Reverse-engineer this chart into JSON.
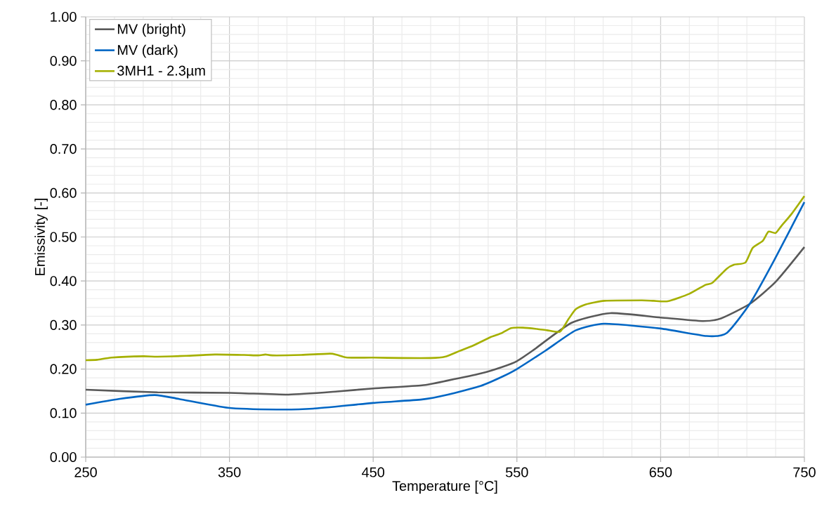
{
  "chart_data": {
    "type": "line",
    "xlabel": "Temperature [°C]",
    "ylabel": "Emissivity [-]",
    "xlim": [
      250,
      750
    ],
    "ylim": [
      0,
      1
    ],
    "xticks": [
      250,
      350,
      450,
      550,
      650,
      750
    ],
    "yticks": [
      {
        "value": 0,
        "label": "0.00"
      },
      {
        "value": 0.1,
        "label": "0.10"
      },
      {
        "value": 0.2,
        "label": "0.20"
      },
      {
        "value": 0.3,
        "label": "0.30"
      },
      {
        "value": 0.4,
        "label": "0.40"
      },
      {
        "value": 0.5,
        "label": "0.50"
      },
      {
        "value": 0.6,
        "label": "0.60"
      },
      {
        "value": 0.7,
        "label": "0.70"
      },
      {
        "value": 0.8,
        "label": "0.80"
      },
      {
        "value": 0.9,
        "label": "0.90"
      },
      {
        "value": 1,
        "label": "1.00"
      }
    ],
    "grid": true,
    "legend": "top left",
    "marker": "none",
    "line_style": "solid",
    "series": [
      {
        "name": "MV (bright)",
        "color": "#595959",
        "x": [
          250,
          300,
          350,
          391,
          425,
          450,
          484,
          502,
          525,
          540,
          550,
          561,
          588,
          615,
          650,
          679,
          692,
          712,
          730,
          750
        ],
        "values": [
          0.153,
          0.147,
          0.146,
          0.142,
          0.149,
          0.156,
          0.163,
          0.174,
          0.19,
          0.205,
          0.218,
          0.242,
          0.305,
          0.327,
          0.317,
          0.309,
          0.315,
          0.348,
          0.398,
          0.477
        ]
      },
      {
        "name": "MV (dark)",
        "color": "#0066c4",
        "x": [
          250,
          273,
          298,
          315,
          349,
          383,
          408,
          450,
          484,
          502,
          525,
          540,
          550,
          570,
          591,
          611,
          650,
          682,
          696,
          712,
          729,
          750
        ],
        "values": [
          0.119,
          0.132,
          0.141,
          0.132,
          0.112,
          0.108,
          0.11,
          0.123,
          0.131,
          0.142,
          0.162,
          0.183,
          0.2,
          0.242,
          0.288,
          0.303,
          0.292,
          0.275,
          0.282,
          0.348,
          0.447,
          0.579
        ]
      },
      {
        "name": "3MH1 - 2.3µm",
        "color": "#a5b000",
        "x": [
          250,
          258,
          268,
          290,
          300,
          320,
          340,
          360,
          370,
          375,
          380,
          400,
          420,
          425,
          432,
          450,
          470,
          490,
          500,
          510,
          520,
          532,
          539,
          546,
          554,
          564,
          571,
          580,
          586,
          591,
          598,
          611,
          637,
          645,
          655,
          670,
          681,
          686,
          696,
          701,
          709,
          714,
          721,
          725,
          730,
          734,
          741,
          750
        ],
        "values": [
          0.22,
          0.221,
          0.226,
          0.229,
          0.228,
          0.23,
          0.233,
          0.232,
          0.231,
          0.233,
          0.231,
          0.232,
          0.235,
          0.232,
          0.226,
          0.226,
          0.225,
          0.225,
          0.228,
          0.241,
          0.254,
          0.273,
          0.281,
          0.293,
          0.294,
          0.291,
          0.288,
          0.285,
          0.314,
          0.336,
          0.347,
          0.355,
          0.356,
          0.355,
          0.354,
          0.371,
          0.391,
          0.396,
          0.428,
          0.437,
          0.442,
          0.475,
          0.491,
          0.512,
          0.509,
          0.525,
          0.552,
          0.593
        ]
      }
    ]
  }
}
